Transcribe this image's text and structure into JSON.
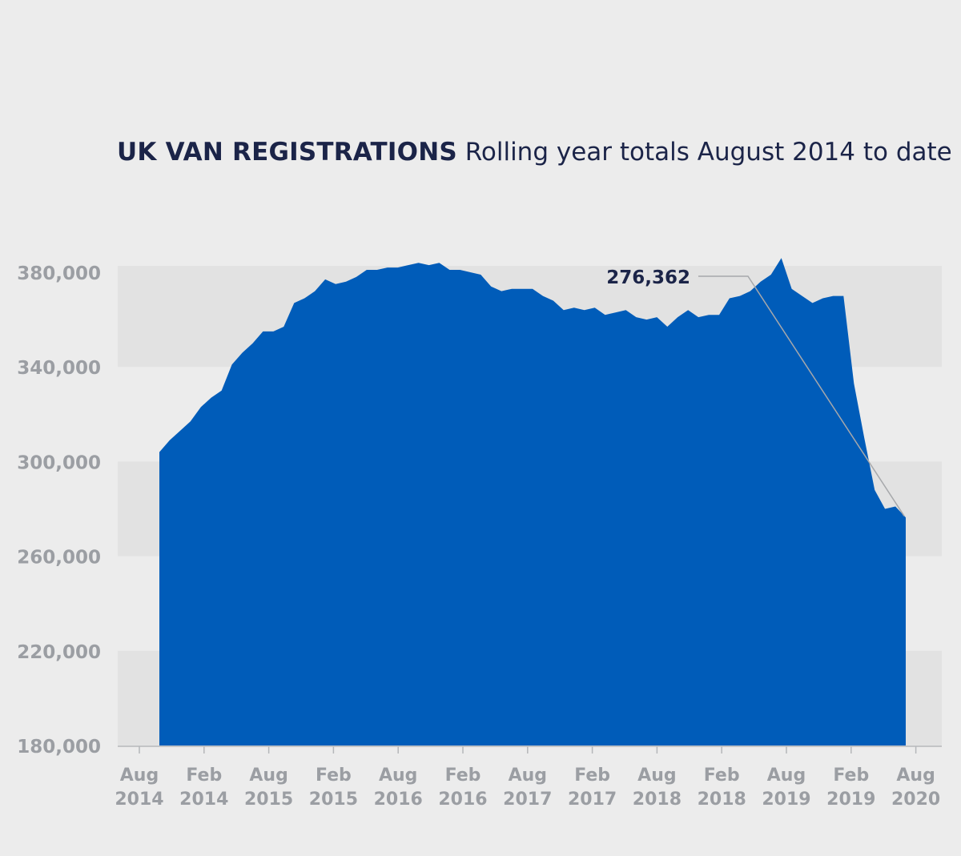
{
  "chart_data": {
    "type": "area",
    "title": "UK VAN REGISTRATIONS",
    "subtitle": "Rolling year totals August 2014 to date",
    "xlabel": "",
    "ylabel": "",
    "ylim": [
      180000,
      380000
    ],
    "y_ticks": [
      "380,000",
      "340,000",
      "300,000",
      "260,000",
      "220,000",
      "180,000"
    ],
    "x_ticks": [
      {
        "line1": "Aug",
        "line2": "2014"
      },
      {
        "line1": "Feb",
        "line2": "2014"
      },
      {
        "line1": "Aug",
        "line2": "2015"
      },
      {
        "line1": "Feb",
        "line2": "2015"
      },
      {
        "line1": "Aug",
        "line2": "2016"
      },
      {
        "line1": "Feb",
        "line2": "2016"
      },
      {
        "line1": "Aug",
        "line2": "2017"
      },
      {
        "line1": "Feb",
        "line2": "2017"
      },
      {
        "line1": "Aug",
        "line2": "2018"
      },
      {
        "line1": "Feb",
        "line2": "2018"
      },
      {
        "line1": "Aug",
        "line2": "2019"
      },
      {
        "line1": "Feb",
        "line2": "2019"
      },
      {
        "line1": "Aug",
        "line2": "2020"
      }
    ],
    "grid": "alternating horizontal bands",
    "color": "#005cb9",
    "annotation": {
      "label": "276,362"
    },
    "series": [
      {
        "values": [
          304000,
          309000,
          313000,
          317000,
          323000,
          327000,
          330000,
          341000,
          346000,
          350000,
          355000,
          355000,
          357000,
          367000,
          369000,
          372000,
          377000,
          375000,
          376000,
          378000,
          381000,
          381000,
          382000,
          382000,
          383000,
          384000,
          383000,
          384000,
          381000,
          381000,
          380000,
          379000,
          374000,
          372000,
          373000,
          373000,
          373000,
          370000,
          368000,
          364000,
          365000,
          364000,
          365000,
          362000,
          363000,
          364000,
          361000,
          360000,
          361000,
          357000,
          361000,
          364000,
          361000,
          362000,
          362000,
          369000,
          370000,
          372000,
          376000,
          379000,
          386000,
          373000,
          370000,
          367000,
          369000,
          370000,
          370000,
          333000,
          310000,
          288000,
          280000,
          281000,
          276362
        ]
      }
    ]
  }
}
